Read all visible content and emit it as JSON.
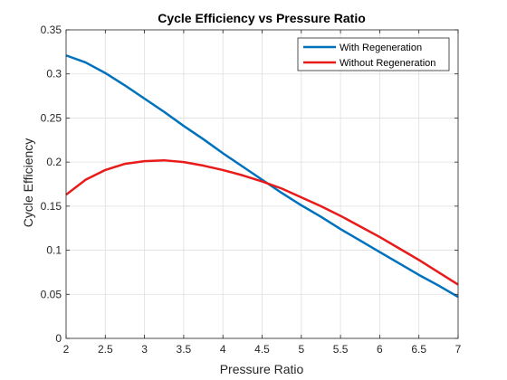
{
  "chart_data": {
    "type": "line",
    "title": "Cycle Efficiency vs Pressure Ratio",
    "xlabel": "Pressure Ratio",
    "ylabel": "Cycle Efficiency",
    "xlim": [
      2,
      7
    ],
    "ylim": [
      0,
      0.35
    ],
    "xticks": [
      2,
      2.5,
      3,
      3.5,
      4,
      4.5,
      5,
      5.5,
      6,
      6.5,
      7
    ],
    "xtick_labels": [
      "2",
      "2.5",
      "3",
      "3.5",
      "4",
      "4.5",
      "5",
      "5.5",
      "6",
      "6.5",
      "7"
    ],
    "yticks": [
      0,
      0.05,
      0.1,
      0.15,
      0.2,
      0.25,
      0.3,
      0.35
    ],
    "ytick_labels": [
      "0",
      "0.05",
      "0.1",
      "0.15",
      "0.2",
      "0.25",
      "0.3",
      "0.35"
    ],
    "grid": true,
    "legend_position": "top-right",
    "series": [
      {
        "name": "With Regeneration",
        "color": "#0072bd",
        "x": [
          2,
          2.25,
          2.5,
          2.75,
          3,
          3.25,
          3.5,
          3.75,
          4,
          4.25,
          4.5,
          4.75,
          5,
          5.25,
          5.5,
          5.75,
          6,
          6.25,
          6.5,
          6.75,
          7
        ],
        "y": [
          0.321,
          0.313,
          0.301,
          0.287,
          0.272,
          0.257,
          0.241,
          0.226,
          0.21,
          0.195,
          0.18,
          0.165,
          0.151,
          0.138,
          0.124,
          0.111,
          0.098,
          0.085,
          0.072,
          0.06,
          0.047
        ]
      },
      {
        "name": "Without Regeneration",
        "color": "#e81a1a",
        "x": [
          2,
          2.25,
          2.5,
          2.75,
          3,
          3.25,
          3.5,
          3.75,
          4,
          4.25,
          4.5,
          4.75,
          5,
          5.25,
          5.5,
          5.75,
          6,
          6.25,
          6.5,
          6.75,
          7
        ],
        "y": [
          0.163,
          0.18,
          0.191,
          0.198,
          0.201,
          0.202,
          0.2,
          0.196,
          0.191,
          0.185,
          0.178,
          0.17,
          0.16,
          0.15,
          0.139,
          0.127,
          0.115,
          0.102,
          0.089,
          0.075,
          0.061
        ]
      }
    ]
  }
}
